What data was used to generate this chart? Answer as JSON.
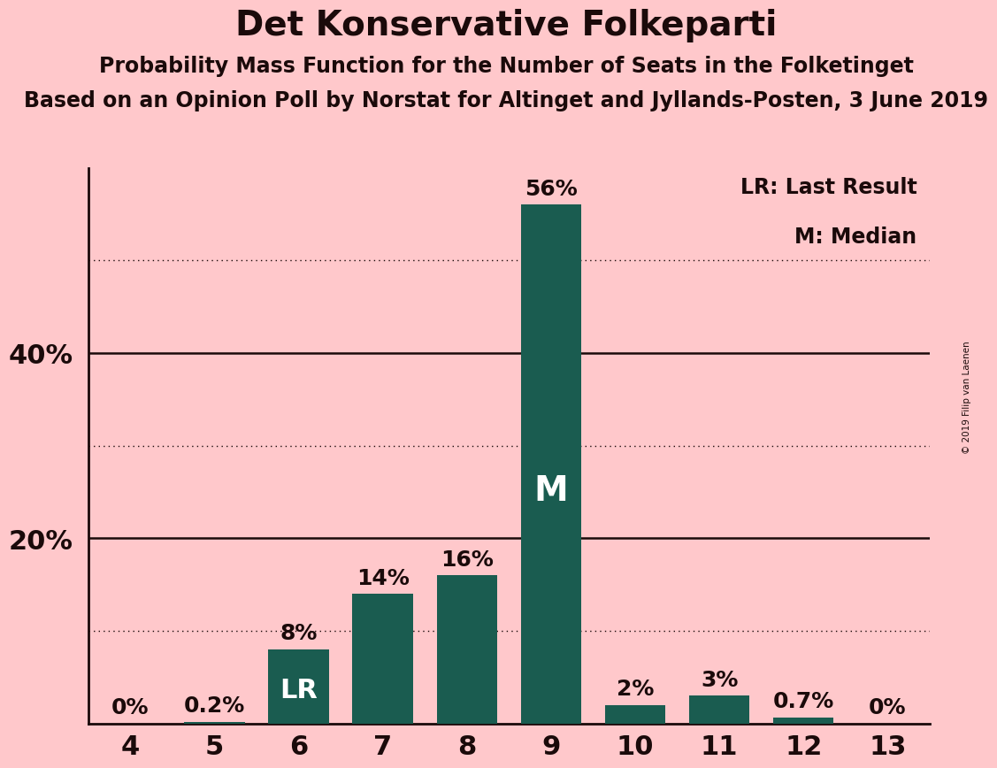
{
  "title": "Det Konservative Folkeparti",
  "subtitle1": "Probability Mass Function for the Number of Seats in the Folketinget",
  "subtitle2": "Based on an Opinion Poll by Norstat for Altinget and Jyllands-Posten, 3 June 2019",
  "copyright": "© 2019 Filip van Laenen",
  "categories": [
    4,
    5,
    6,
    7,
    8,
    9,
    10,
    11,
    12,
    13
  ],
  "values": [
    0.0,
    0.2,
    8.0,
    14.0,
    16.0,
    56.0,
    2.0,
    3.0,
    0.7,
    0.0
  ],
  "bar_color": "#1a5c50",
  "background_color": "#ffc8cb",
  "text_color": "#1a0a0a",
  "bar_labels": [
    "0%",
    "0.2%",
    "8%",
    "14%",
    "16%",
    "56%",
    "2%",
    "3%",
    "0.7%",
    "0%"
  ],
  "lr_bar_idx": 2,
  "lr_label": "LR",
  "median_bar_idx": 5,
  "median_label": "M",
  "legend_lr": "LR: Last Result",
  "legend_m": "M: Median",
  "ylim": [
    0,
    60
  ],
  "dotted_gridlines": [
    10,
    30,
    50
  ],
  "solid_gridlines": [
    20,
    40
  ],
  "title_fontsize": 28,
  "subtitle_fontsize": 17,
  "bar_label_fontsize": 18,
  "xtick_fontsize": 22,
  "ytick_fontsize": 22,
  "legend_fontsize": 17,
  "inside_label_fontsize": 22
}
